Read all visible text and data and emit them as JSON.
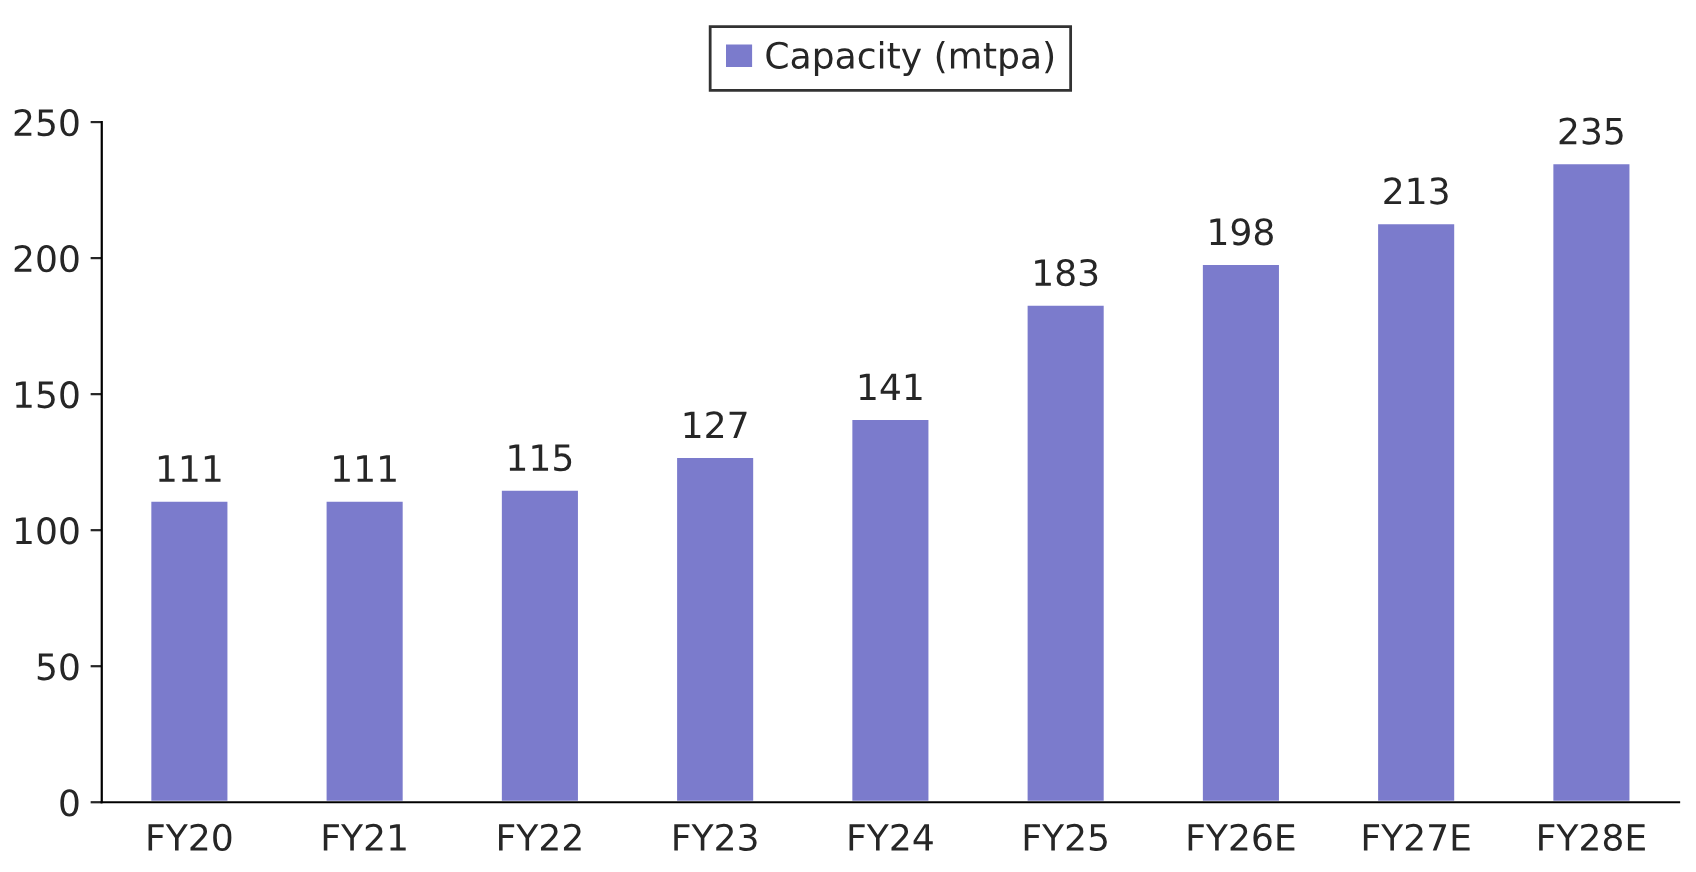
{
  "chart_data": {
    "type": "bar",
    "categories": [
      "FY20",
      "FY21",
      "FY22",
      "FY23",
      "FY24",
      "FY25",
      "FY26E",
      "FY27E",
      "FY28E"
    ],
    "series": [
      {
        "name": "Capacity (mtpa)",
        "color": "#7b7bcc",
        "values": [
          111,
          111,
          115,
          127,
          141,
          183,
          198,
          213,
          235
        ]
      }
    ],
    "ylim": [
      0,
      250
    ],
    "yticks": [
      0,
      50,
      100,
      150,
      200,
      250
    ],
    "data_labels": true,
    "grid": false,
    "legend": "top"
  }
}
